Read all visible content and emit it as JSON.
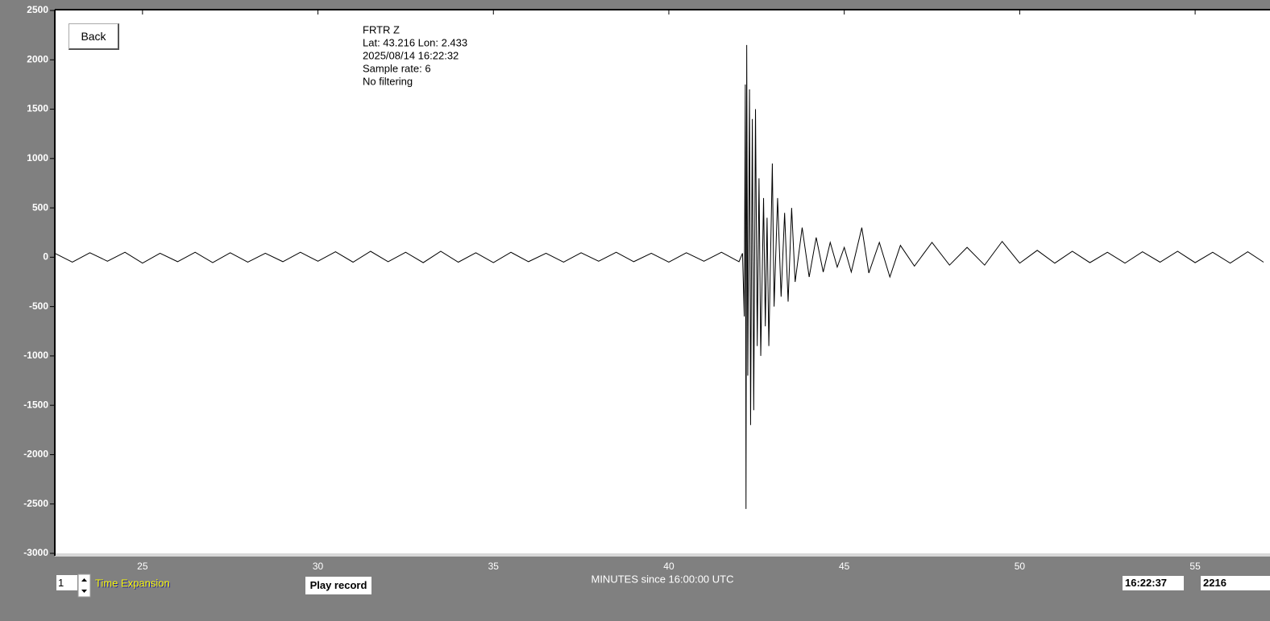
{
  "chart_data": {
    "type": "line",
    "info": [
      "FRTR  Z",
      "Lat: 43.216 Lon: 2.433",
      "2025/08/14 16:22:32",
      "Sample rate: 6",
      "No filtering"
    ],
    "xlabel": "MINUTES since 16:00:00 UTC",
    "xlim": [
      22.5,
      56.95
    ],
    "ylim": [
      -3000,
      2500
    ],
    "xticks": [
      25,
      30,
      35,
      40,
      45,
      50,
      55
    ],
    "yticks": [
      2500,
      2000,
      1500,
      1000,
      500,
      0,
      -500,
      -1000,
      -1500,
      -2000,
      -2500,
      -3000
    ],
    "color": "#000000",
    "x": [
      22.5,
      23.0,
      23.5,
      24.0,
      24.5,
      25.0,
      25.5,
      26.0,
      26.5,
      27.0,
      27.5,
      28.0,
      28.5,
      29.0,
      29.5,
      30.0,
      30.5,
      31.0,
      31.5,
      32.0,
      32.5,
      33.0,
      33.5,
      34.0,
      34.5,
      35.0,
      35.5,
      36.0,
      36.5,
      37.0,
      37.5,
      38.0,
      38.5,
      39.0,
      39.5,
      40.0,
      40.5,
      41.0,
      41.5,
      42.0,
      42.1,
      42.15,
      42.18,
      42.2,
      42.22,
      42.25,
      42.3,
      42.33,
      42.38,
      42.42,
      42.47,
      42.52,
      42.57,
      42.62,
      42.7,
      42.75,
      42.8,
      42.85,
      42.95,
      43.0,
      43.1,
      43.2,
      43.3,
      43.4,
      43.5,
      43.6,
      43.8,
      44.0,
      44.2,
      44.4,
      44.6,
      44.8,
      45.0,
      45.2,
      45.5,
      45.7,
      46.0,
      46.3,
      46.6,
      47.0,
      47.5,
      48.0,
      48.5,
      49.0,
      49.5,
      50.0,
      50.5,
      51.0,
      51.5,
      52.0,
      52.5,
      53.0,
      53.5,
      54.0,
      54.5,
      55.0,
      55.5,
      56.0,
      56.5,
      56.95
    ],
    "values": [
      40,
      -50,
      45,
      -40,
      50,
      -60,
      40,
      -45,
      50,
      -55,
      45,
      -50,
      40,
      -45,
      50,
      -40,
      55,
      -50,
      60,
      -45,
      50,
      -55,
      60,
      -50,
      45,
      -55,
      50,
      -45,
      40,
      -50,
      45,
      -40,
      50,
      -45,
      40,
      -50,
      45,
      -40,
      50,
      -45,
      40,
      -600,
      1750,
      -2550,
      2150,
      -1200,
      1700,
      -1700,
      1400,
      -1550,
      1500,
      -900,
      800,
      -1000,
      600,
      -700,
      400,
      -900,
      950,
      -500,
      600,
      -400,
      450,
      -450,
      500,
      -250,
      300,
      -200,
      200,
      -150,
      150,
      -100,
      100,
      -150,
      300,
      -160,
      150,
      -200,
      120,
      -90,
      150,
      -80,
      100,
      -80,
      160,
      -60,
      70,
      -60,
      60,
      -55,
      50,
      -60,
      55,
      -50,
      60,
      -55,
      50,
      -60,
      55,
      -50
    ]
  },
  "ui": {
    "back": "Back",
    "expansion_value": "1",
    "expansion_label": "Time Expansion",
    "play": "Play record",
    "time": "16:22:37",
    "count": "2216"
  }
}
